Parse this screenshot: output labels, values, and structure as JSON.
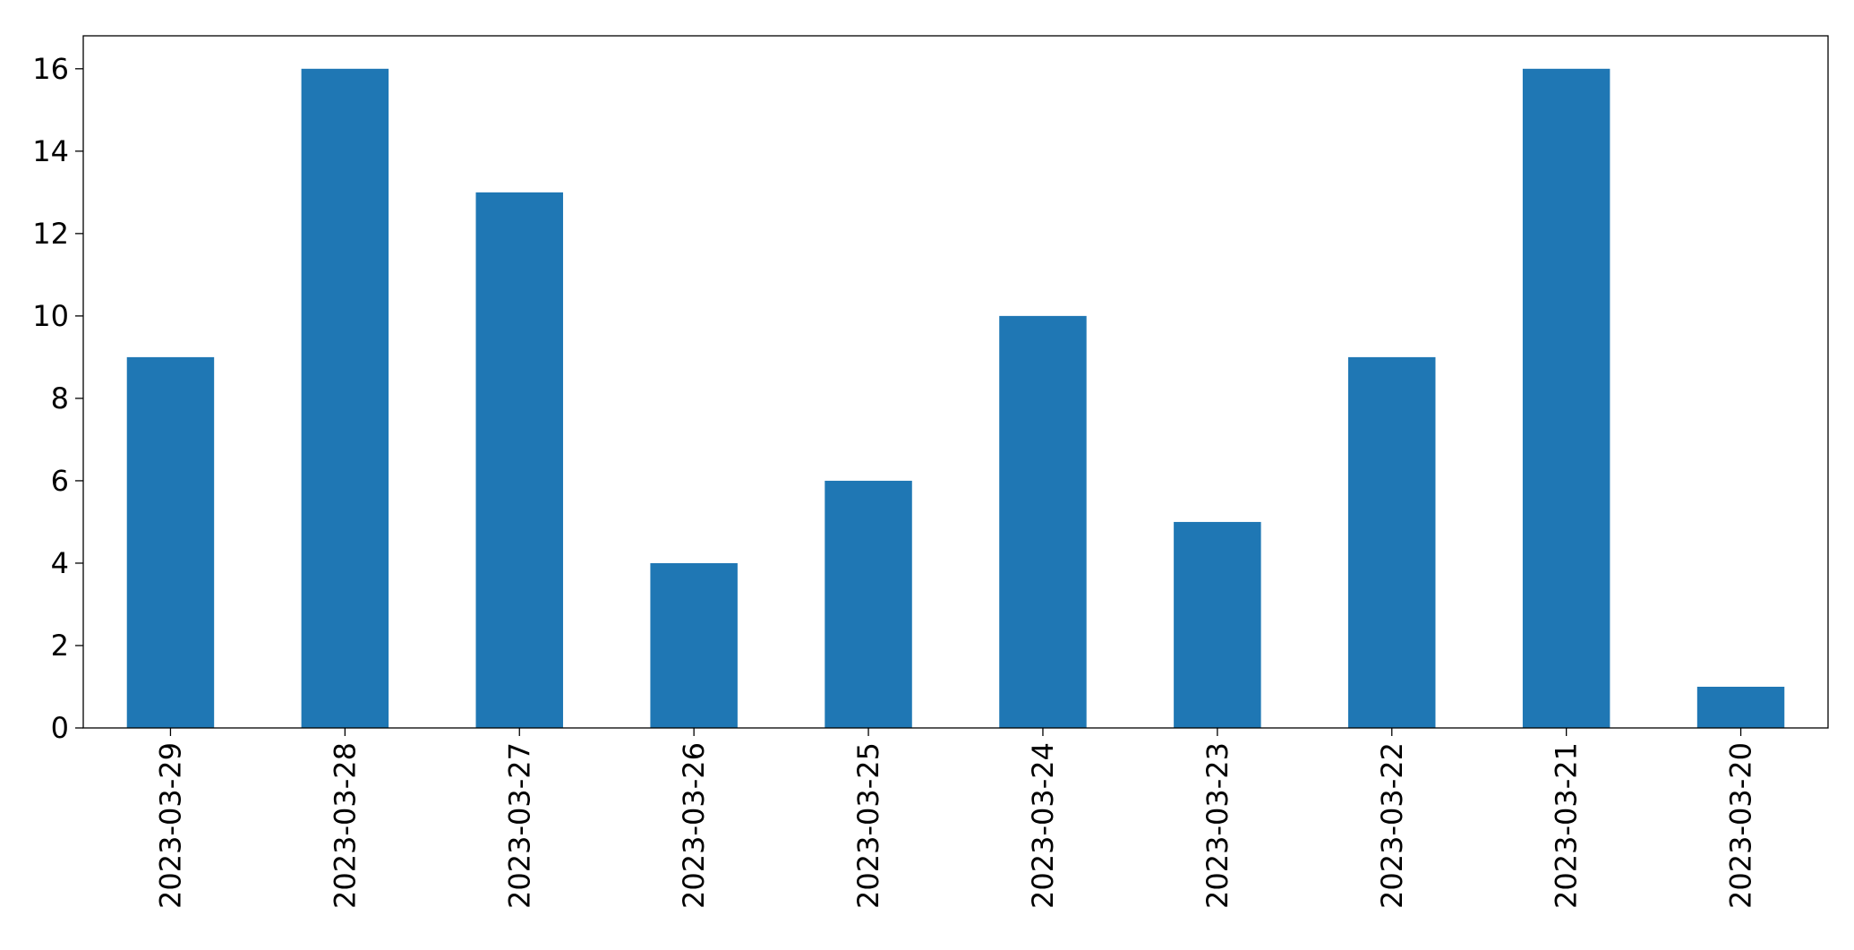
{
  "chart_data": {
    "type": "bar",
    "categories": [
      "2023-03-29",
      "2023-03-28",
      "2023-03-27",
      "2023-03-26",
      "2023-03-25",
      "2023-03-24",
      "2023-03-23",
      "2023-03-22",
      "2023-03-21",
      "2023-03-20"
    ],
    "values": [
      9,
      16,
      13,
      4,
      6,
      10,
      5,
      9,
      16,
      1
    ],
    "color": "#1f77b4",
    "ylim": [
      0,
      16.8
    ],
    "yticks": [
      0,
      2,
      4,
      6,
      8,
      10,
      12,
      14,
      16
    ],
    "grid": false
  }
}
